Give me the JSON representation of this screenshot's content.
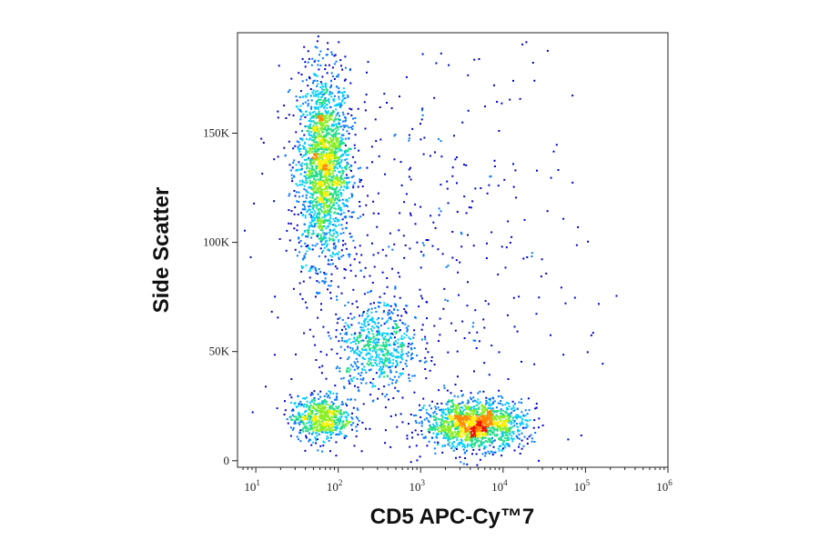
{
  "chart_data": {
    "type": "scatter",
    "subtype": "flow cytometry density dot plot",
    "title": "",
    "xlabel": "CD5 APC-Cy™7",
    "ylabel": "Side Scatter",
    "x_scale": "log",
    "xlim": [
      6,
      1000000
    ],
    "ylim": [
      -3000,
      196000
    ],
    "x_ticks": [
      {
        "value": 10,
        "base": "10",
        "exp": "1"
      },
      {
        "value": 100,
        "base": "10",
        "exp": "2"
      },
      {
        "value": 1000,
        "base": "10",
        "exp": "3"
      },
      {
        "value": 10000,
        "base": "10",
        "exp": "4"
      },
      {
        "value": 100000,
        "base": "10",
        "exp": "5"
      },
      {
        "value": 1000000,
        "base": "10",
        "exp": "6"
      }
    ],
    "y_ticks": [
      {
        "value": 0,
        "label": "0"
      },
      {
        "value": 50000,
        "label": "50K"
      },
      {
        "value": 100000,
        "label": "100K"
      },
      {
        "value": 150000,
        "label": "150K"
      }
    ],
    "grid": false,
    "legend": "none",
    "colormap": [
      "#0000cc",
      "#0077ff",
      "#00ccff",
      "#22dd88",
      "#88ee22",
      "#ffee00",
      "#ff8800",
      "#ee1100"
    ],
    "populations": [
      {
        "x_center": 65,
        "y_center": 135000,
        "x_spread_decades": 0.16,
        "y_spread": 22000,
        "weight": 0.38
      },
      {
        "x_center": 60,
        "y_center": 20000,
        "x_spread_decades": 0.18,
        "y_spread": 5000,
        "weight": 0.12
      },
      {
        "x_center": 300,
        "y_center": 52000,
        "x_spread_decades": 0.25,
        "y_spread": 10000,
        "weight": 0.12
      },
      {
        "x_center": 4500,
        "y_center": 17000,
        "x_spread_decades": 0.3,
        "y_spread": 5500,
        "weight": 0.28
      },
      {
        "x_center": 800,
        "y_center": 90000,
        "x_spread_decades": 1.0,
        "y_spread": 55000,
        "weight": 0.1
      }
    ]
  }
}
